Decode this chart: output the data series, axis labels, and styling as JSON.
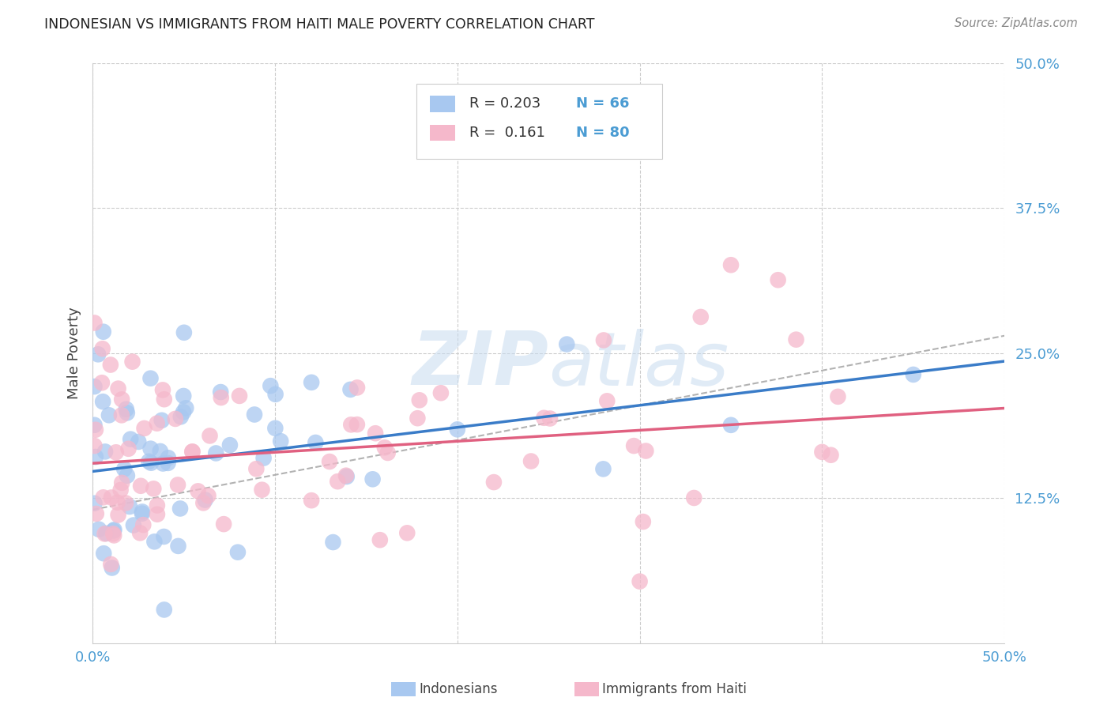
{
  "title": "INDONESIAN VS IMMIGRANTS FROM HAITI MALE POVERTY CORRELATION CHART",
  "source": "Source: ZipAtlas.com",
  "ylabel": "Male Poverty",
  "xlim": [
    0.0,
    0.5
  ],
  "ylim": [
    0.0,
    0.5
  ],
  "watermark": "ZIPatlas",
  "legend": {
    "R1": "0.203",
    "N1": "66",
    "R2": "0.161",
    "N2": "80",
    "label1": "Indonesians",
    "label2": "Immigrants from Haiti"
  },
  "color_blue": "#A8C8F0",
  "color_pink": "#F5B8CB",
  "color_blue_line": "#3A7CC8",
  "color_pink_line": "#E06080",
  "color_blue_text": "#4B9CD3",
  "color_pink_text": "#E87090",
  "indo_R": 0.203,
  "haiti_R": 0.161,
  "indo_intercept": 0.148,
  "indo_slope": 0.19,
  "haiti_intercept": 0.155,
  "haiti_slope": 0.095
}
